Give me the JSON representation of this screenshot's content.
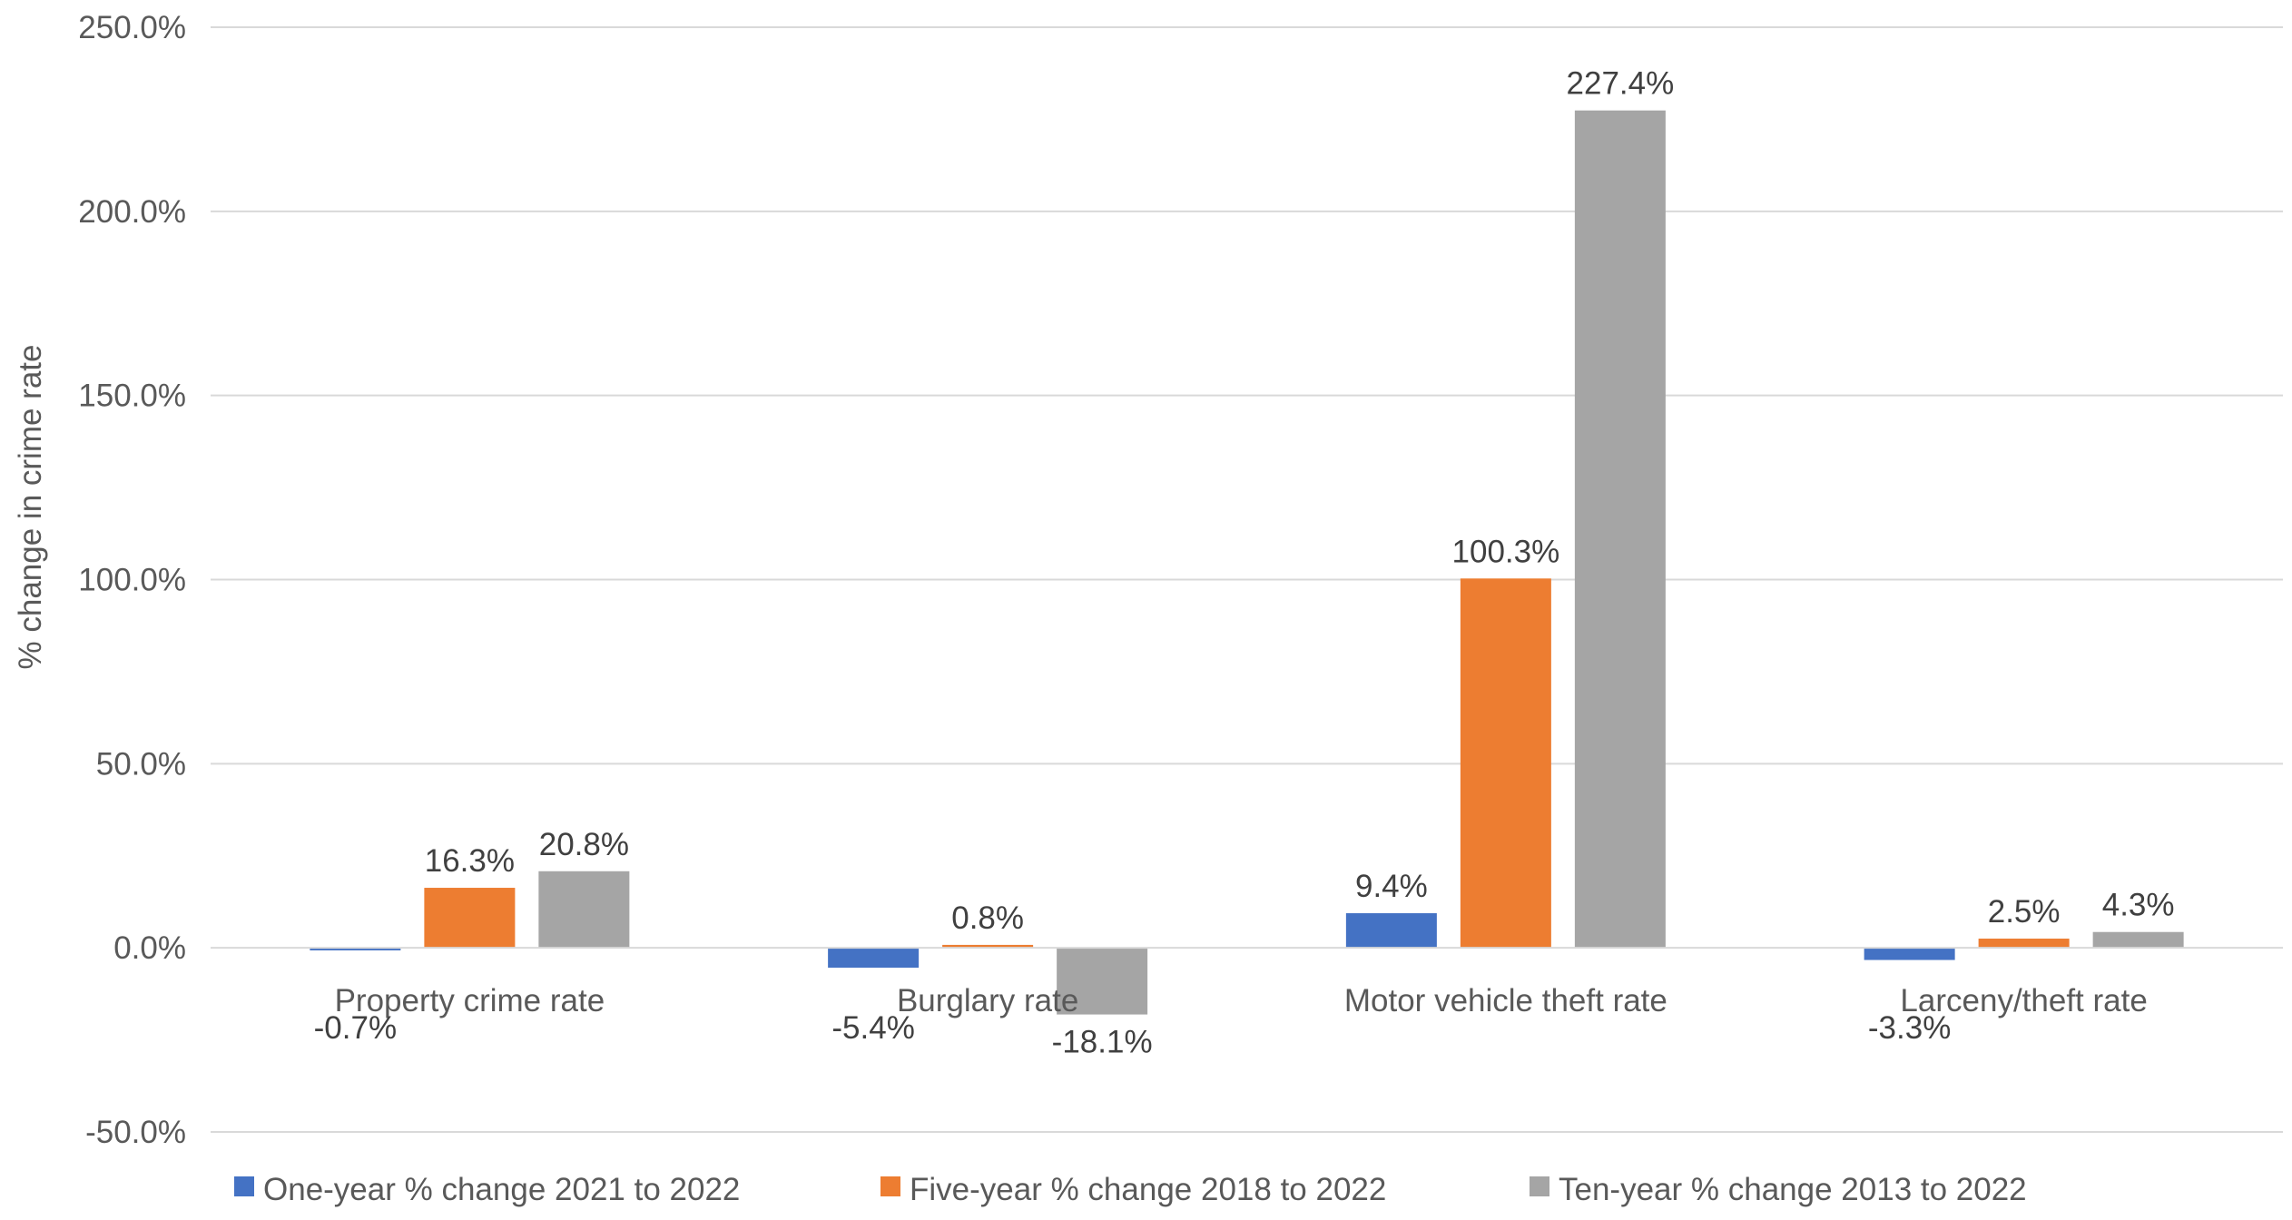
{
  "chart_data": {
    "type": "bar",
    "title": "",
    "xlabel": "",
    "ylabel": "% change in crime rate",
    "ylim": [
      -50,
      250
    ],
    "yticks": [
      -50,
      0,
      50,
      100,
      150,
      200,
      250
    ],
    "ytick_labels": [
      "-50.0%",
      "0.0%",
      "50.0%",
      "100.0%",
      "150.0%",
      "200.0%",
      "250.0%"
    ],
    "grid": true,
    "legend_position": "bottom",
    "categories": [
      "Property crime rate",
      "Burglary rate",
      "Motor vehicle theft rate",
      "Larceny/theft rate"
    ],
    "series": [
      {
        "name": "One-year % change 2021 to 2022",
        "color": "#4472C4",
        "values": [
          -0.7,
          -5.4,
          9.4,
          -3.3
        ],
        "labels": [
          "-0.7%",
          "-5.4%",
          "9.4%",
          "-3.3%"
        ]
      },
      {
        "name": "Five-year % change 2018 to 2022",
        "color": "#ED7D31",
        "values": [
          16.3,
          0.8,
          100.3,
          2.5
        ],
        "labels": [
          "16.3%",
          "0.8%",
          "100.3%",
          "2.5%"
        ]
      },
      {
        "name": "Ten-year % change 2013 to 2022",
        "color": "#A5A5A5",
        "values": [
          20.8,
          -18.1,
          227.4,
          4.3
        ],
        "labels": [
          "20.8%",
          "-18.1%",
          "227.4%",
          "4.3%"
        ]
      }
    ]
  }
}
